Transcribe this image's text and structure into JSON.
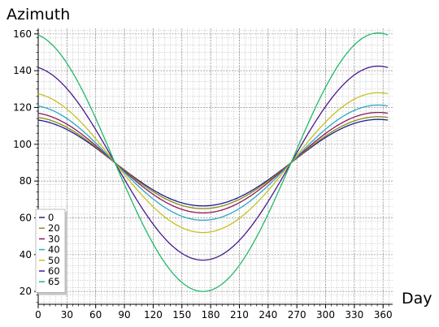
{
  "chart_data": {
    "type": "line",
    "title": "",
    "xlabel": "Day",
    "ylabel": "Azimuth",
    "xlim": [
      0,
      370
    ],
    "ylim": [
      13,
      163
    ],
    "xticks": [
      0,
      30,
      60,
      90,
      120,
      150,
      180,
      210,
      240,
      270,
      300,
      330,
      360
    ],
    "yticks": [
      20,
      40,
      60,
      80,
      100,
      120,
      140,
      160
    ],
    "grid": true,
    "legend_position": "bottom-left",
    "series": [
      {
        "name": "0",
        "color": "#1f1f8c",
        "max": 113.5,
        "min": 66.5
      },
      {
        "name": "20",
        "color": "#8a8a18",
        "max": 115.0,
        "min": 65.0
      },
      {
        "name": "30",
        "color": "#8e1a5c",
        "max": 117.3,
        "min": 62.7
      },
      {
        "name": "40",
        "color": "#2aa8c8",
        "max": 121.3,
        "min": 58.7
      },
      {
        "name": "50",
        "color": "#c8c020",
        "max": 128.0,
        "min": 52.0
      },
      {
        "name": "60",
        "color": "#4a1a8c",
        "max": 142.5,
        "min": 37.0
      },
      {
        "name": "65",
        "color": "#22b86a",
        "max": 160.5,
        "min": 20.0
      }
    ],
    "x_range": [
      0,
      365
    ],
    "peak_day": 355,
    "trough_day": 172,
    "crossing": {
      "days": [
        80,
        264
      ],
      "value": 90
    }
  }
}
